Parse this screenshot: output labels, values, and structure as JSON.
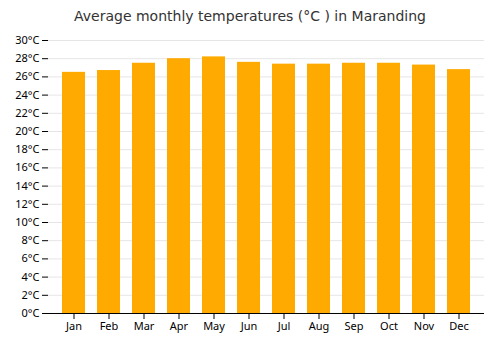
{
  "chart_data": {
    "type": "bar",
    "title": "Average monthly temperatures (°C ) in Maranding",
    "categories": [
      "Jan",
      "Feb",
      "Mar",
      "Apr",
      "May",
      "Jun",
      "Jul",
      "Aug",
      "Sep",
      "Oct",
      "Nov",
      "Dec"
    ],
    "values": [
      26.5,
      26.7,
      27.5,
      28.0,
      28.2,
      27.6,
      27.4,
      27.4,
      27.5,
      27.5,
      27.3,
      26.8
    ],
    "color": "#FFAA00",
    "ylim": [
      0,
      30
    ],
    "yticks": [
      {
        "value": 0,
        "label": "0°C"
      },
      {
        "value": 2,
        "label": "2°C"
      },
      {
        "value": 4,
        "label": "4°C"
      },
      {
        "value": 6,
        "label": "6°C"
      },
      {
        "value": 8,
        "label": "8°C"
      },
      {
        "value": 10,
        "label": "10°C"
      },
      {
        "value": 12,
        "label": "12°C"
      },
      {
        "value": 14,
        "label": "14°C"
      },
      {
        "value": 16,
        "label": "16°C"
      },
      {
        "value": 18,
        "label": "18°C"
      },
      {
        "value": 20,
        "label": "20°C"
      },
      {
        "value": 22,
        "label": "22°C"
      },
      {
        "value": 24,
        "label": "24°C"
      },
      {
        "value": 26,
        "label": "26°C"
      },
      {
        "value": 28,
        "label": "28°C"
      },
      {
        "value": 30,
        "label": "30°C"
      }
    ],
    "grid": true
  }
}
